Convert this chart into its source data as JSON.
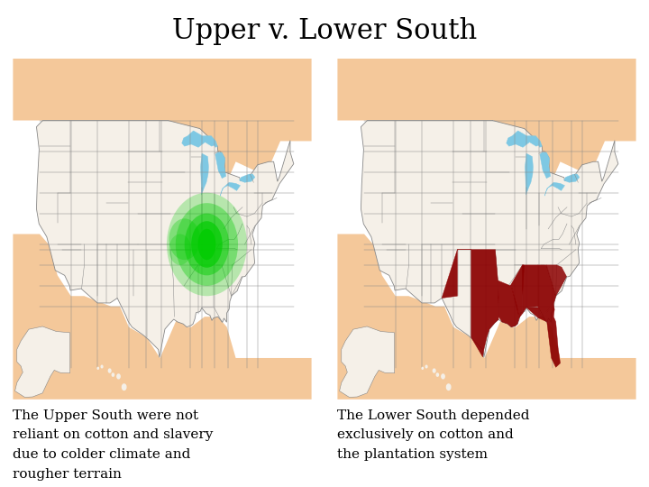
{
  "title": "Upper v. Lower South",
  "title_fontsize": 22,
  "title_font": "serif",
  "background_color": "#ffffff",
  "left_map_description": "The Upper South were not\nreliant on cotton and slavery\ndue to colder climate and\nrougher terrain",
  "right_map_description": "The Lower South depended\nexclusively on cotton and\nthe plantation system",
  "desc_fontsize": 11,
  "desc_font": "serif",
  "upper_south_highlight_color": "#00cc00",
  "lower_south_highlight_color": "#8b0000",
  "ocean_color": "#7ec8e3",
  "land_color": "#f4c89a",
  "us_fill_color": "#f5f0e8",
  "lake_color": "#7ec8e3",
  "state_border_color": "#888888",
  "map_border_color": "#000000"
}
